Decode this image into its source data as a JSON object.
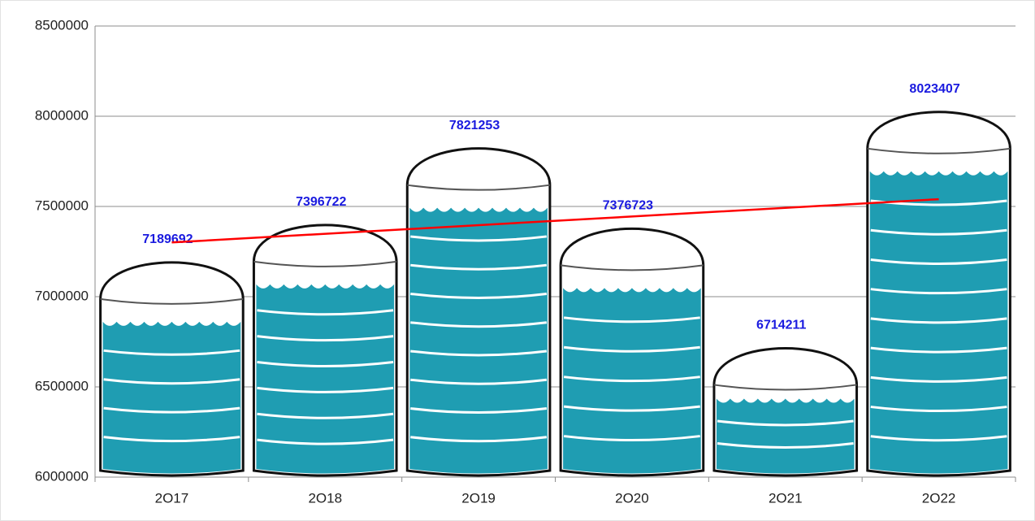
{
  "chart_data": {
    "type": "bar",
    "categories": [
      "2O17",
      "2O18",
      "2O19",
      "2O20",
      "2O21",
      "2O22"
    ],
    "values": [
      7189692,
      7396722,
      7821253,
      7376723,
      6714211,
      8023407
    ],
    "color": "#1f9db2",
    "ylim": [
      6000000,
      8500000
    ],
    "yticks": [
      6000000,
      6500000,
      7000000,
      7500000,
      8000000,
      8500000
    ],
    "grid": true,
    "trendline": true,
    "trendline_color": "#ff0000"
  }
}
